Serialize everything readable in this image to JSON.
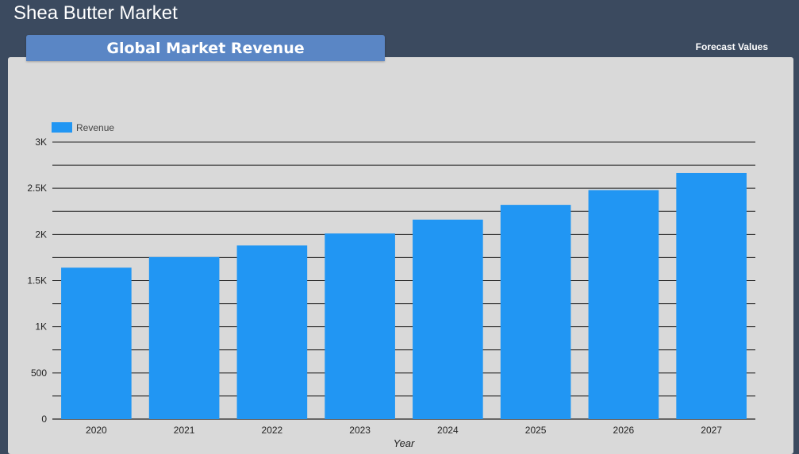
{
  "header": {
    "title": "Shea Butter Market",
    "tab_label": "Global Market Revenue",
    "forecast_label": "Forecast Values"
  },
  "colors": {
    "background": "#3b4a5f",
    "panel": "#d9d9d9",
    "tab": "#5a86c5",
    "bar": "#2196f3"
  },
  "chart_data": {
    "type": "bar",
    "categories": [
      "2020",
      "2021",
      "2022",
      "2023",
      "2024",
      "2025",
      "2026",
      "2027"
    ],
    "series": [
      {
        "name": "Revenue",
        "values": [
          1640,
          1755,
          1880,
          2010,
          2160,
          2320,
          2480,
          2665
        ]
      }
    ],
    "xlabel": "Year",
    "ylabel": "",
    "ylim": [
      0,
      3000
    ],
    "yticks": [
      0,
      500,
      1000,
      1500,
      2000,
      2500,
      3000
    ],
    "ytick_labels": [
      "0",
      "500",
      "1K",
      "1.5K",
      "2K",
      "2.5K",
      "3K"
    ],
    "legend": "top-left",
    "grid": true
  }
}
